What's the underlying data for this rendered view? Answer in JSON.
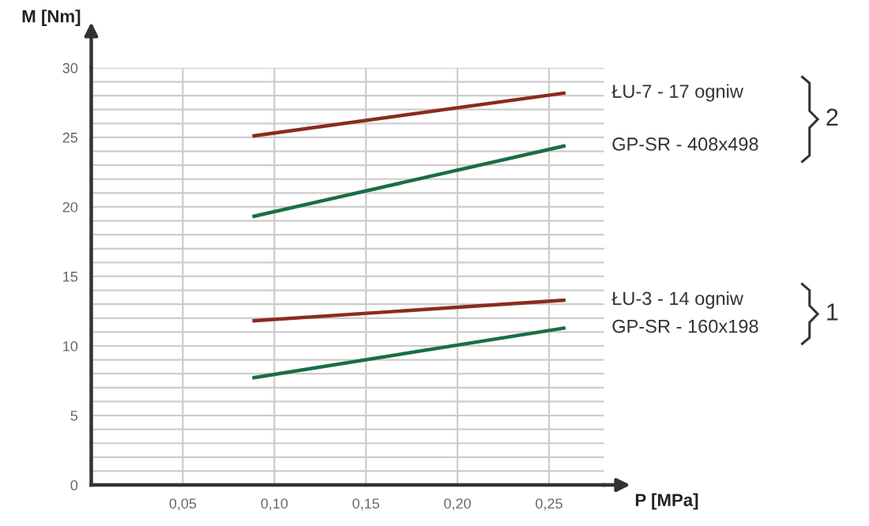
{
  "chart_data": {
    "type": "line",
    "xlabel": "P [MPa]",
    "ylabel": "M [Nm]",
    "x": [
      0.088,
      0.259
    ],
    "series": [
      {
        "name": "ŁU-7 - 17 ogniw",
        "color": "#8b2c1c",
        "values": [
          25.1,
          28.2
        ]
      },
      {
        "name": "GP-SR - 408x498",
        "color": "#1a6e45",
        "values": [
          19.3,
          24.4
        ]
      },
      {
        "name": "ŁU-3 - 14 ogniw",
        "color": "#8b2c1c",
        "values": [
          11.8,
          13.3
        ]
      },
      {
        "name": "GP-SR - 160x198",
        "color": "#1a6e45",
        "values": [
          7.7,
          11.3
        ]
      }
    ],
    "annotations": [
      "2",
      "1"
    ],
    "xlim": [
      0,
      0.28
    ],
    "xticks": [
      {
        "value": 0.05,
        "label": "0,05"
      },
      {
        "value": 0.1,
        "label": "0,10"
      },
      {
        "value": 0.15,
        "label": "0,15"
      },
      {
        "value": 0.2,
        "label": "0,20"
      },
      {
        "value": 0.25,
        "label": "0,25"
      }
    ],
    "ylim": [
      0,
      30
    ],
    "yticks": [
      0,
      {
        "value": 1,
        "label": null
      },
      {
        "value": 2,
        "label": null
      },
      {
        "value": 3,
        "label": null
      },
      {
        "value": 4,
        "label": null
      },
      5,
      {
        "value": 6,
        "label": null
      },
      {
        "value": 7,
        "label": null
      },
      {
        "value": 8,
        "label": null
      },
      {
        "value": 9,
        "label": null
      },
      10,
      {
        "value": 11,
        "label": null
      },
      {
        "value": 12,
        "label": null
      },
      {
        "value": 13,
        "label": null
      },
      {
        "value": 14,
        "label": null
      },
      15,
      {
        "value": 16,
        "label": null
      },
      {
        "value": 17,
        "label": null
      },
      {
        "value": 18,
        "label": null
      },
      {
        "value": 19,
        "label": null
      },
      20,
      {
        "value": 21,
        "label": null
      },
      {
        "value": 22,
        "label": null
      },
      {
        "value": 23,
        "label": null
      },
      {
        "value": 24,
        "label": null
      },
      25,
      {
        "value": 26,
        "label": null
      },
      {
        "value": 27,
        "label": null
      },
      {
        "value": 28,
        "label": null
      },
      {
        "value": 29,
        "label": null
      },
      30
    ],
    "grid": true,
    "marker": "none",
    "line_style": "solid",
    "legend": false
  }
}
